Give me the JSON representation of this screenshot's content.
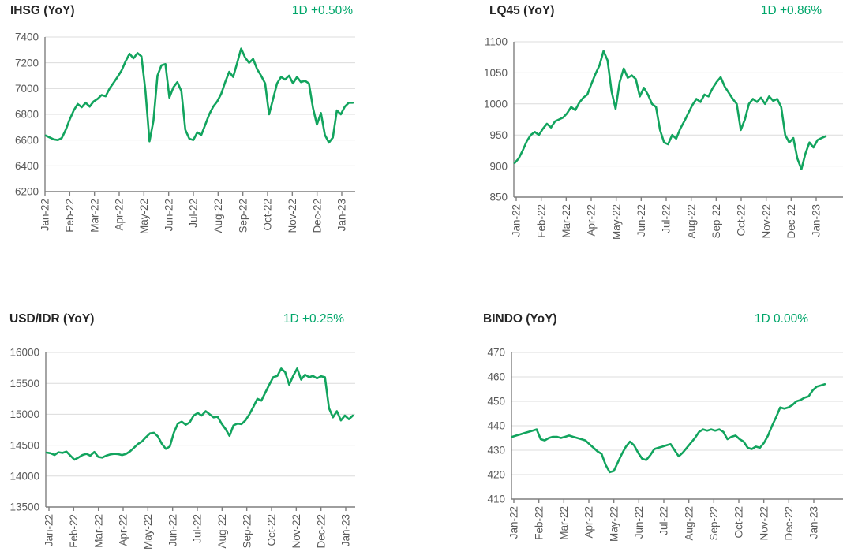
{
  "colors": {
    "line_green": "#12a45e",
    "change_green": "#00a66a",
    "grid": "#dcdcdc",
    "axis": "#7f7f7f",
    "tick_label": "#595959",
    "title": "#262626",
    "background": "#ffffff"
  },
  "chart_data": [
    {
      "type": "line",
      "id": "ihsg",
      "title": "IHSG (YoY)",
      "change_label": "1D +0.50%",
      "x_tick_labels": [
        "Jan-22",
        "Feb-22",
        "Mar-22",
        "Apr-22",
        "May-22",
        "Jun-22",
        "Jul-22",
        "Aug-22",
        "Sep-22",
        "Oct-22",
        "Nov-22",
        "Dec-22",
        "Jan-23"
      ],
      "ylim": [
        6200,
        7400
      ],
      "yticks": [
        7400,
        7200,
        7000,
        6800,
        6600,
        6400,
        6200
      ],
      "grid": "horizontal",
      "legend": "none",
      "values": [
        6635,
        6620,
        6605,
        6600,
        6615,
        6680,
        6760,
        6830,
        6880,
        6855,
        6890,
        6860,
        6900,
        6920,
        6950,
        6940,
        7000,
        7045,
        7090,
        7140,
        7210,
        7270,
        7235,
        7275,
        7250,
        6980,
        6590,
        6750,
        7100,
        7180,
        7190,
        6930,
        7010,
        7050,
        6980,
        6680,
        6610,
        6600,
        6660,
        6640,
        6720,
        6800,
        6860,
        6900,
        6960,
        7050,
        7130,
        7090,
        7200,
        7310,
        7240,
        7200,
        7230,
        7150,
        7100,
        7040,
        6800,
        6920,
        7040,
        7090,
        7070,
        7100,
        7040,
        7090,
        7050,
        7060,
        7040,
        6850,
        6720,
        6810,
        6640,
        6580,
        6620,
        6830,
        6800,
        6860,
        6890,
        6890
      ]
    },
    {
      "type": "line",
      "id": "lq45",
      "title": "LQ45 (YoY)",
      "change_label": "1D +0.86%",
      "x_tick_labels": [
        "Jan-22",
        "Feb-22",
        "Mar-22",
        "Apr-22",
        "May-22",
        "Jun-22",
        "Jul-22",
        "Aug-22",
        "Sep-22",
        "Oct-22",
        "Nov-22",
        "Dec-22",
        "Jan-23"
      ],
      "ylim": [
        850,
        1100
      ],
      "yticks": [
        1100,
        1050,
        1000,
        950,
        900,
        850
      ],
      "grid": "horizontal",
      "legend": "none",
      "values": [
        905,
        912,
        925,
        940,
        950,
        955,
        950,
        960,
        968,
        962,
        972,
        975,
        978,
        985,
        995,
        990,
        1002,
        1010,
        1015,
        1032,
        1048,
        1062,
        1085,
        1070,
        1020,
        992,
        1035,
        1057,
        1042,
        1046,
        1040,
        1012,
        1026,
        1015,
        1000,
        995,
        958,
        938,
        935,
        950,
        944,
        960,
        972,
        985,
        998,
        1008,
        1003,
        1015,
        1012,
        1025,
        1035,
        1043,
        1028,
        1018,
        1008,
        1000,
        958,
        975,
        1000,
        1008,
        1003,
        1010,
        1000,
        1012,
        1005,
        1008,
        995,
        950,
        938,
        945,
        912,
        895,
        920,
        938,
        930,
        942,
        945,
        948
      ]
    },
    {
      "type": "line",
      "id": "usdidr",
      "title": "USD/IDR (YoY)",
      "change_label": "1D +0.25%",
      "x_tick_labels": [
        "Jan-22",
        "Feb-22",
        "Mar-22",
        "Apr-22",
        "May-22",
        "Jun-22",
        "Jul-22",
        "Aug-22",
        "Sep-22",
        "Oct-22",
        "Nov-22",
        "Dec-22",
        "Jan-23"
      ],
      "ylim": [
        13500,
        16000
      ],
      "yticks": [
        16000,
        15500,
        15000,
        14500,
        14000,
        13500
      ],
      "grid": "horizontal",
      "legend": "none",
      "values": [
        14380,
        14370,
        14340,
        14385,
        14375,
        14395,
        14330,
        14265,
        14300,
        14340,
        14360,
        14330,
        14390,
        14310,
        14300,
        14330,
        14350,
        14360,
        14355,
        14340,
        14360,
        14400,
        14460,
        14520,
        14560,
        14630,
        14690,
        14700,
        14640,
        14520,
        14440,
        14480,
        14700,
        14850,
        14880,
        14830,
        14870,
        14980,
        15020,
        14980,
        15050,
        15000,
        14950,
        14960,
        14850,
        14760,
        14650,
        14820,
        14850,
        14840,
        14900,
        15000,
        15120,
        15250,
        15220,
        15350,
        15480,
        15600,
        15620,
        15740,
        15680,
        15480,
        15620,
        15740,
        15560,
        15640,
        15600,
        15620,
        15580,
        15615,
        15600,
        15100,
        14950,
        15050,
        14900,
        14980,
        14920,
        14980
      ]
    },
    {
      "type": "line",
      "id": "bindo",
      "title": "BINDO (YoY)",
      "change_label": "1D 0.00%",
      "x_tick_labels": [
        "Jan-22",
        "Feb-22",
        "Mar-22",
        "Apr-22",
        "May-22",
        "Jun-22",
        "Jul-22",
        "Aug-22",
        "Sep-22",
        "Oct-22",
        "Nov-22",
        "Dec-22",
        "Jan-23"
      ],
      "ylim": [
        410,
        470
      ],
      "yticks": [
        470,
        460,
        450,
        440,
        430,
        420,
        410
      ],
      "grid": "horizontal",
      "legend": "none",
      "values": [
        435.5,
        436,
        436.5,
        437,
        437.5,
        438,
        438.5,
        434.5,
        434,
        435,
        435.5,
        435.5,
        435,
        435.5,
        436,
        435.5,
        435,
        434.5,
        434,
        432.5,
        431,
        429.5,
        428.5,
        424,
        421,
        421.5,
        425,
        428.5,
        431.5,
        433.5,
        432,
        429,
        426.5,
        426,
        428,
        430.5,
        431,
        431.5,
        432,
        432.5,
        430,
        427.5,
        429,
        431,
        433,
        435,
        437.5,
        438.5,
        438,
        438.5,
        438,
        438.5,
        437.5,
        434.5,
        435.5,
        436,
        434.5,
        433.5,
        431,
        430.5,
        431.5,
        431,
        433,
        436,
        440,
        443.5,
        447.5,
        447,
        447.5,
        448.5,
        450,
        450.5,
        451.5,
        452,
        454.5,
        456,
        456.5,
        457
      ]
    }
  ]
}
